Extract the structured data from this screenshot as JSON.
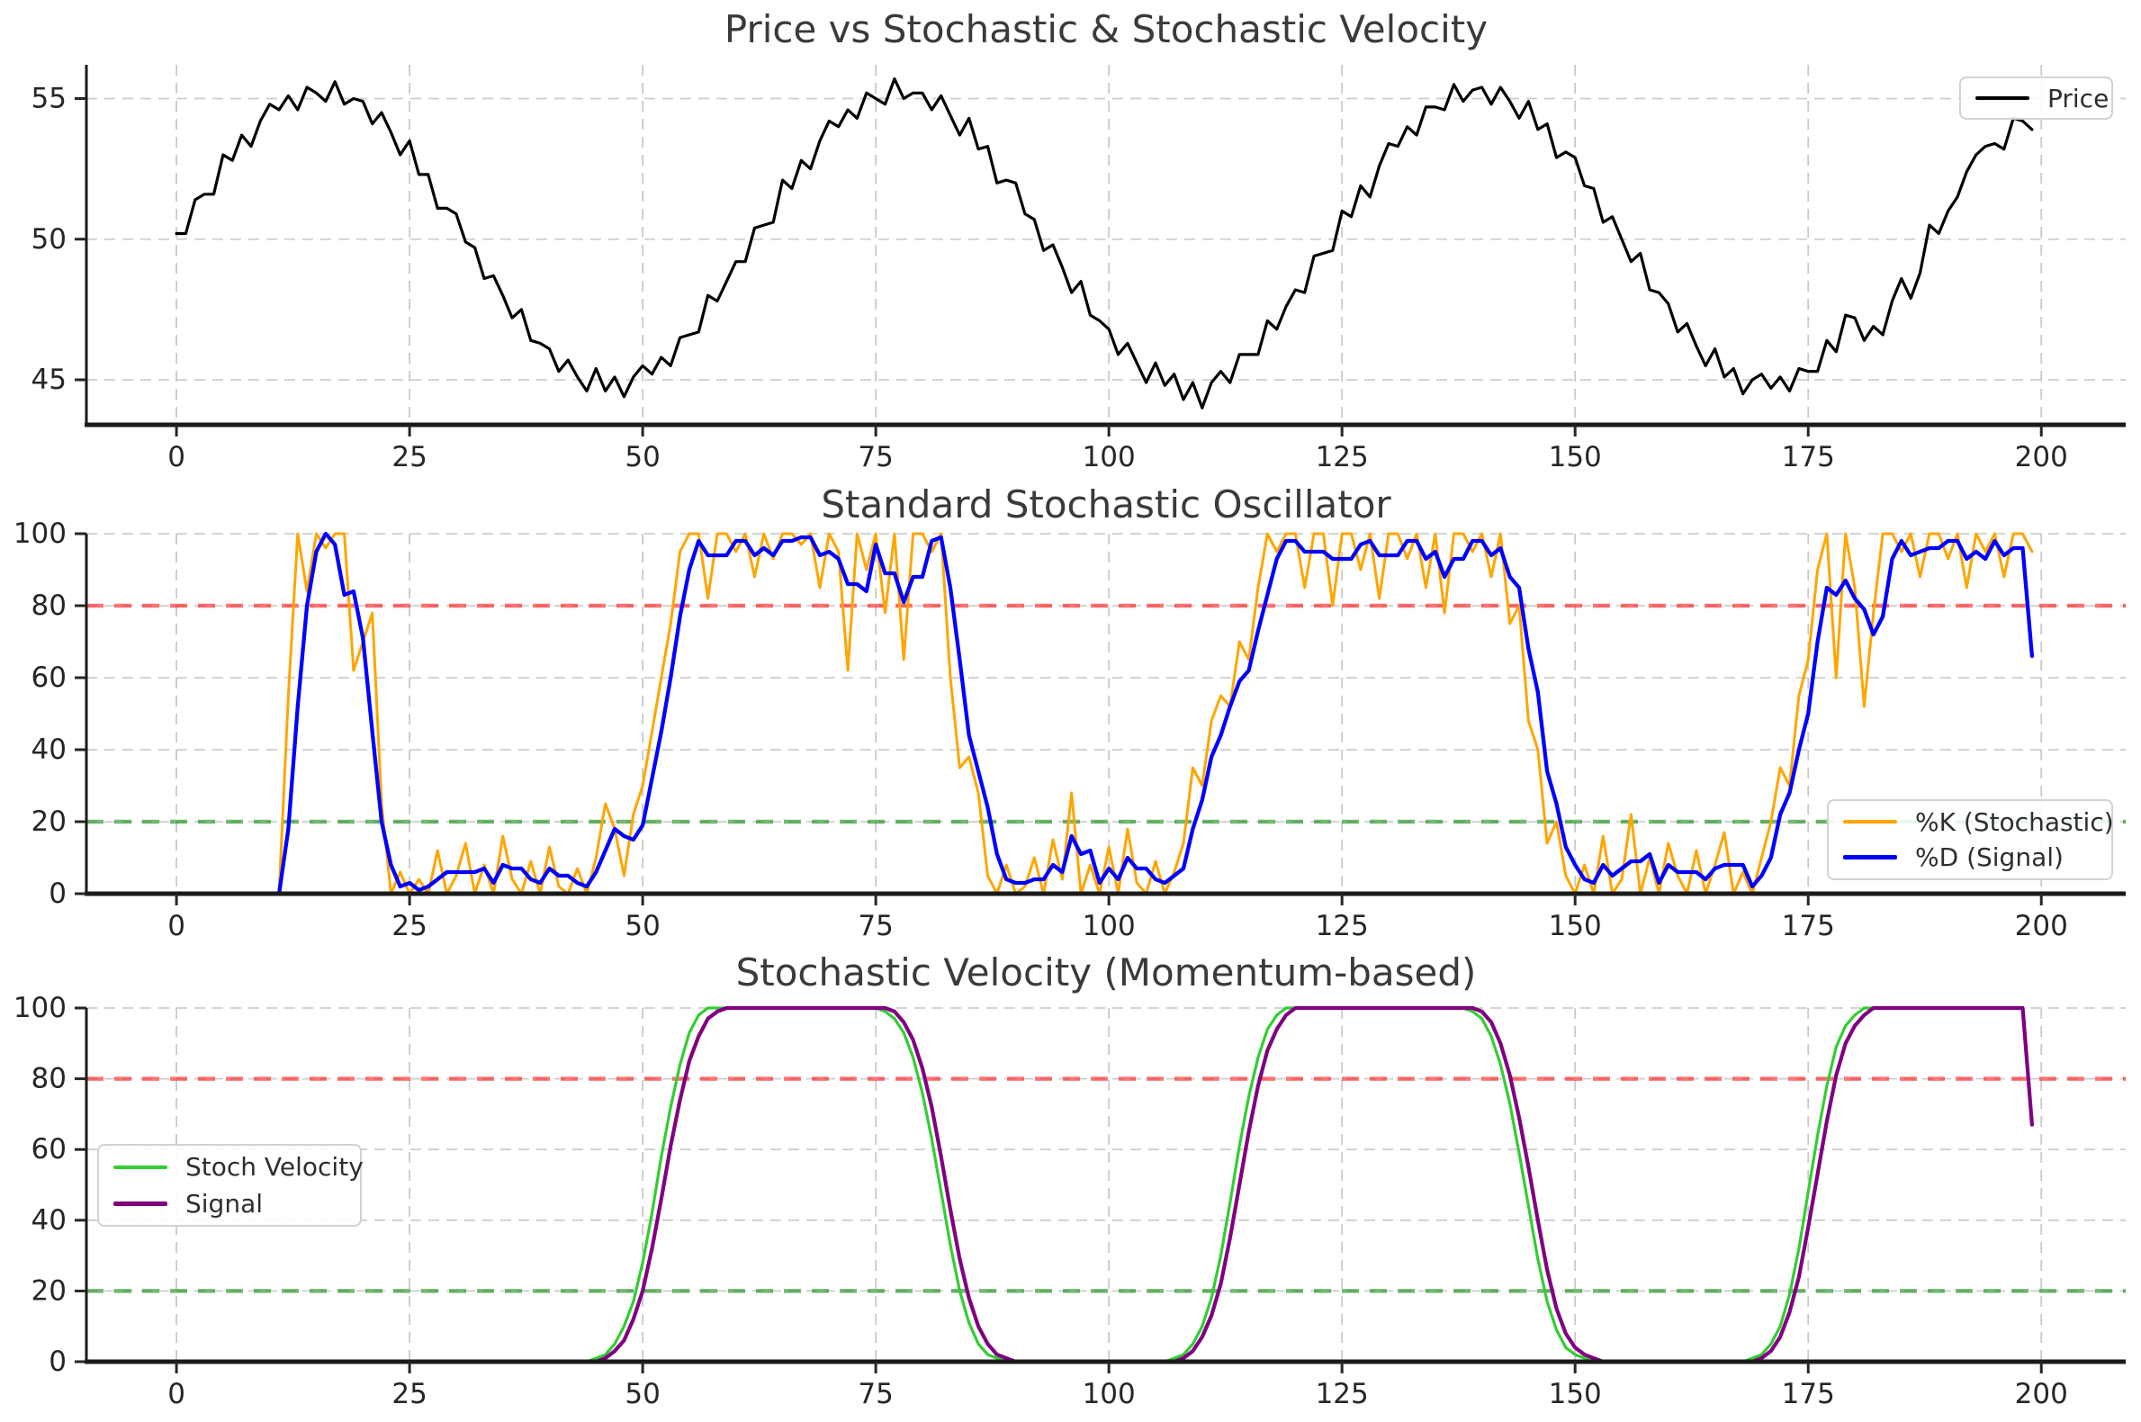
{
  "figure": {
    "overbought_level": 80,
    "oversold_level": 20,
    "accent_colors": {
      "price": "#000000",
      "percent_k": "#FFA500",
      "percent_d": "#0000FF",
      "stoch_velocity": "#32CD32",
      "signal": "#800080",
      "overbought": "rgba(255,0,0,0.55)",
      "oversold": "rgba(0,128,0,0.55)"
    }
  },
  "chart_data": [
    {
      "type": "line",
      "title": "Price vs Stochastic & Stochastic Velocity",
      "xlabel": "",
      "ylabel": "",
      "x_start": 0,
      "x_step": 1,
      "xlim": [
        -9.66,
        209.05
      ],
      "ylim": [
        43.4,
        56.2
      ],
      "xticks": [
        0,
        25,
        50,
        75,
        100,
        125,
        150,
        175,
        200
      ],
      "yticks": [
        45,
        50,
        55
      ],
      "grid": true,
      "legend_position": "upper-right",
      "thresholds": [],
      "series": [
        {
          "name": "Price",
          "color": "#000000",
          "width": 3.2,
          "values": [
            50.2,
            50.2,
            51.4,
            51.6,
            51.6,
            53.0,
            52.8,
            53.7,
            53.3,
            54.2,
            54.8,
            54.6,
            55.1,
            54.6,
            55.4,
            55.2,
            54.9,
            55.6,
            54.8,
            55.0,
            54.9,
            54.1,
            54.5,
            53.8,
            53.0,
            53.5,
            52.3,
            52.3,
            51.1,
            51.1,
            50.9,
            49.9,
            49.7,
            48.6,
            48.7,
            48.0,
            47.2,
            47.5,
            46.4,
            46.3,
            46.1,
            45.3,
            45.7,
            45.1,
            44.6,
            45.4,
            44.6,
            45.1,
            44.4,
            45.1,
            45.5,
            45.2,
            45.8,
            45.5,
            46.5,
            46.6,
            46.7,
            48.0,
            47.8,
            48.5,
            49.2,
            49.2,
            50.4,
            50.5,
            50.6,
            52.1,
            51.8,
            52.8,
            52.5,
            53.5,
            54.2,
            54.0,
            54.6,
            54.3,
            55.2,
            55.0,
            54.8,
            55.7,
            55.0,
            55.2,
            55.2,
            54.6,
            55.1,
            54.4,
            53.7,
            54.3,
            53.2,
            53.3,
            52.0,
            52.1,
            52.0,
            50.9,
            50.7,
            49.6,
            49.8,
            49.0,
            48.1,
            48.5,
            47.3,
            47.1,
            46.8,
            45.9,
            46.3,
            45.6,
            44.9,
            45.6,
            44.8,
            45.2,
            44.3,
            44.9,
            44.0,
            44.9,
            45.3,
            44.9,
            45.9,
            45.9,
            45.9,
            47.1,
            46.8,
            47.6,
            48.2,
            48.1,
            49.4,
            49.5,
            49.6,
            51.0,
            50.8,
            51.9,
            51.5,
            52.6,
            53.4,
            53.3,
            54.0,
            53.7,
            54.7,
            54.7,
            54.6,
            55.5,
            54.9,
            55.3,
            55.4,
            54.8,
            55.4,
            54.9,
            54.3,
            54.9,
            53.9,
            54.1,
            52.9,
            53.1,
            52.9,
            51.9,
            51.8,
            50.6,
            50.8,
            50.0,
            49.2,
            49.5,
            48.2,
            48.1,
            47.7,
            46.7,
            47.0,
            46.2,
            45.5,
            46.1,
            45.1,
            45.4,
            44.5,
            45.0,
            45.2,
            44.7,
            45.1,
            44.6,
            45.4,
            45.3,
            45.3,
            46.4,
            46.0,
            47.3,
            47.2,
            46.4,
            46.9,
            46.6,
            47.8,
            48.6,
            47.9,
            48.8,
            50.5,
            50.2,
            51.0,
            51.5,
            52.4,
            53.0,
            53.3,
            53.4,
            53.2,
            54.3,
            54.2,
            53.9
          ]
        }
      ]
    },
    {
      "type": "line",
      "title": "Standard Stochastic Oscillator",
      "xlabel": "",
      "ylabel": "",
      "x_start": 0,
      "x_step": 1,
      "xlim": [
        -9.66,
        209.05
      ],
      "ylim": [
        0,
        100
      ],
      "xticks": [
        0,
        25,
        50,
        75,
        100,
        125,
        150,
        175,
        200
      ],
      "yticks": [
        0,
        20,
        40,
        60,
        80,
        100
      ],
      "grid": true,
      "legend_position": "lower-right",
      "thresholds": [
        {
          "name": "overbought-80",
          "value": 80,
          "color": "rgba(255,0,0,0.55)",
          "style": "dashed"
        },
        {
          "name": "oversold-20",
          "value": 20,
          "color": "rgba(0,128,0,0.55)",
          "style": "dashed"
        }
      ],
      "series": [
        {
          "name": "%K (Stochastic)",
          "color": "#FFA500",
          "width": 3.0,
          "values": [
            0,
            0,
            0,
            0,
            0,
            0,
            0,
            0,
            0,
            0,
            0,
            0,
            55,
            100,
            84,
            100,
            96,
            100,
            100,
            62,
            70,
            78,
            25,
            0,
            6,
            0,
            4,
            0,
            12,
            0,
            5,
            14,
            0,
            8,
            0,
            16,
            4,
            0,
            9,
            0,
            13,
            2,
            0,
            7,
            0,
            10,
            25,
            18,
            5,
            22,
            30,
            45,
            60,
            75,
            95,
            100,
            100,
            82,
            100,
            100,
            95,
            100,
            88,
            100,
            93,
            100,
            100,
            97,
            100,
            85,
            100,
            95,
            62,
            100,
            90,
            100,
            78,
            100,
            65,
            100,
            100,
            95,
            100,
            60,
            35,
            38,
            28,
            5,
            0,
            8,
            0,
            2,
            10,
            0,
            15,
            4,
            28,
            0,
            8,
            0,
            13,
            0,
            18,
            3,
            0,
            9,
            0,
            6,
            14,
            35,
            30,
            48,
            55,
            52,
            70,
            65,
            85,
            100,
            95,
            100,
            100,
            85,
            100,
            100,
            80,
            100,
            100,
            90,
            100,
            82,
            100,
            100,
            93,
            100,
            85,
            100,
            78,
            100,
            100,
            95,
            100,
            88,
            100,
            75,
            80,
            48,
            40,
            14,
            20,
            5,
            0,
            8,
            0,
            16,
            0,
            4,
            22,
            0,
            10,
            0,
            14,
            5,
            0,
            12,
            0,
            8,
            17,
            0,
            6,
            0,
            10,
            20,
            35,
            30,
            55,
            65,
            90,
            100,
            60,
            100,
            85,
            52,
            78,
            100,
            100,
            95,
            100,
            88,
            100,
            100,
            93,
            100,
            85,
            100,
            95,
            100,
            88,
            100,
            100,
            95
          ]
        },
        {
          "name": "%D (Signal)",
          "color": "#0000FF",
          "width": 4.3,
          "values": [
            0,
            0,
            0,
            0,
            0,
            0,
            0,
            0,
            0,
            0,
            0,
            0,
            18,
            52,
            80,
            95,
            100,
            97,
            83,
            84,
            71,
            45,
            20,
            8,
            2,
            3,
            1,
            2,
            4,
            6,
            6,
            6,
            6,
            7,
            3,
            8,
            7,
            7,
            4,
            3,
            7,
            5,
            5,
            3,
            2,
            6,
            12,
            18,
            16,
            15,
            19,
            32,
            45,
            60,
            77,
            90,
            98,
            94,
            94,
            94,
            98,
            98,
            94,
            96,
            94,
            98,
            98,
            99,
            99,
            94,
            95,
            93,
            86,
            86,
            84,
            97,
            89,
            89,
            81,
            88,
            88,
            98,
            99,
            85,
            65,
            44,
            34,
            24,
            11,
            4,
            3,
            3,
            4,
            4,
            8,
            6,
            16,
            11,
            12,
            3,
            7,
            4,
            10,
            7,
            7,
            4,
            3,
            5,
            7,
            18,
            26,
            38,
            44,
            52,
            59,
            62,
            73,
            83,
            93,
            98,
            98,
            95,
            95,
            95,
            93,
            93,
            93,
            97,
            98,
            94,
            94,
            94,
            98,
            98,
            93,
            95,
            88,
            93,
            93,
            98,
            98,
            94,
            96,
            88,
            85,
            68,
            56,
            34,
            25,
            13,
            8,
            4,
            3,
            8,
            5,
            7,
            9,
            9,
            11,
            3,
            8,
            6,
            6,
            6,
            4,
            7,
            8,
            8,
            8,
            2,
            5,
            10,
            22,
            28,
            40,
            50,
            70,
            85,
            83,
            87,
            82,
            79,
            72,
            77,
            93,
            98,
            94,
            95,
            96,
            96,
            98,
            98,
            93,
            95,
            93,
            98,
            94,
            96,
            96,
            66
          ]
        }
      ]
    },
    {
      "type": "line",
      "title": "Stochastic Velocity (Momentum-based)",
      "xlabel": "",
      "ylabel": "",
      "x_start": 0,
      "x_step": 1,
      "xlim": [
        -9.66,
        209.05
      ],
      "ylim": [
        0,
        100
      ],
      "xticks": [
        0,
        25,
        50,
        75,
        100,
        125,
        150,
        175,
        200
      ],
      "yticks": [
        0,
        20,
        40,
        60,
        80,
        100
      ],
      "grid": true,
      "legend_position": "center-left",
      "thresholds": [
        {
          "name": "overbought-80",
          "value": 80,
          "color": "rgba(255,0,0,0.55)",
          "style": "dashed"
        },
        {
          "name": "oversold-20",
          "value": 20,
          "color": "rgba(0,128,0,0.55)",
          "style": "dashed"
        }
      ],
      "series": [
        {
          "name": "Stoch Velocity",
          "color": "#32CD32",
          "width": 3.2,
          "values": [
            0,
            0,
            0,
            0,
            0,
            0,
            0,
            0,
            0,
            0,
            0,
            0,
            0,
            0,
            0,
            0,
            0,
            0,
            0,
            0,
            0,
            0,
            0,
            0,
            0,
            0,
            0,
            0,
            0,
            0,
            0,
            0,
            0,
            0,
            0,
            0,
            0,
            0,
            0,
            0,
            0,
            0,
            0,
            0,
            0,
            1,
            2,
            5,
            10,
            17,
            28,
            42,
            58,
            72,
            84,
            93,
            98,
            100,
            100,
            100,
            100,
            100,
            100,
            100,
            100,
            100,
            100,
            100,
            100,
            100,
            100,
            100,
            100,
            100,
            100,
            100,
            99,
            97,
            93,
            86,
            76,
            63,
            48,
            33,
            20,
            11,
            5,
            2,
            1,
            0,
            0,
            0,
            0,
            0,
            0,
            0,
            0,
            0,
            0,
            0,
            0,
            0,
            0,
            0,
            0,
            0,
            0,
            1,
            2,
            5,
            10,
            18,
            30,
            45,
            61,
            75,
            86,
            94,
            98,
            100,
            100,
            100,
            100,
            100,
            100,
            100,
            100,
            100,
            100,
            100,
            100,
            100,
            100,
            100,
            100,
            100,
            100,
            100,
            100,
            99,
            97,
            92,
            84,
            73,
            59,
            44,
            29,
            17,
            9,
            4,
            2,
            1,
            0,
            0,
            0,
            0,
            0,
            0,
            0,
            0,
            0,
            0,
            0,
            0,
            0,
            0,
            0,
            0,
            0,
            1,
            2,
            5,
            10,
            19,
            32,
            48,
            64,
            78,
            89,
            95,
            98,
            100,
            100,
            100,
            100,
            100,
            100,
            100,
            100,
            100,
            100,
            100,
            100,
            100,
            100,
            100,
            100,
            100,
            100,
            67
          ]
        },
        {
          "name": "Signal",
          "color": "#800080",
          "width": 4.2,
          "values": [
            0,
            0,
            0,
            0,
            0,
            0,
            0,
            0,
            0,
            0,
            0,
            0,
            0,
            0,
            0,
            0,
            0,
            0,
            0,
            0,
            0,
            0,
            0,
            0,
            0,
            0,
            0,
            0,
            0,
            0,
            0,
            0,
            0,
            0,
            0,
            0,
            0,
            0,
            0,
            0,
            0,
            0,
            0,
            0,
            0,
            0,
            1,
            3,
            6,
            12,
            20,
            32,
            46,
            61,
            74,
            85,
            92,
            97,
            99,
            100,
            100,
            100,
            100,
            100,
            100,
            100,
            100,
            100,
            100,
            100,
            100,
            100,
            100,
            100,
            100,
            100,
            100,
            99,
            96,
            91,
            83,
            72,
            58,
            43,
            29,
            18,
            10,
            5,
            2,
            1,
            0,
            0,
            0,
            0,
            0,
            0,
            0,
            0,
            0,
            0,
            0,
            0,
            0,
            0,
            0,
            0,
            0,
            0,
            1,
            3,
            7,
            13,
            22,
            35,
            50,
            65,
            78,
            88,
            94,
            98,
            100,
            100,
            100,
            100,
            100,
            100,
            100,
            100,
            100,
            100,
            100,
            100,
            100,
            100,
            100,
            100,
            100,
            100,
            100,
            100,
            99,
            96,
            90,
            81,
            69,
            55,
            40,
            26,
            15,
            8,
            4,
            2,
            1,
            0,
            0,
            0,
            0,
            0,
            0,
            0,
            0,
            0,
            0,
            0,
            0,
            0,
            0,
            0,
            0,
            0,
            1,
            3,
            7,
            14,
            24,
            38,
            53,
            68,
            81,
            90,
            95,
            98,
            100,
            100,
            100,
            100,
            100,
            100,
            100,
            100,
            100,
            100,
            100,
            100,
            100,
            100,
            100,
            100,
            100,
            67
          ]
        }
      ]
    }
  ]
}
